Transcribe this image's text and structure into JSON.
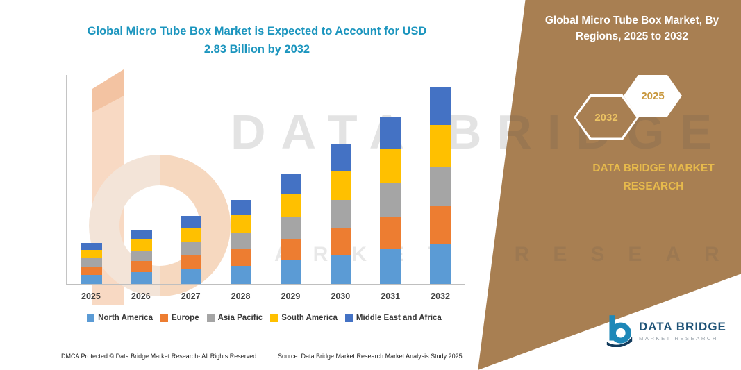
{
  "title": {
    "line1": "Global Micro Tube Box Market is Expected to Account for USD",
    "line2": "2.83 Billion by 2032"
  },
  "chart_data": {
    "type": "bar",
    "stacked": true,
    "title": "Global Micro Tube Box Market is Expected to Account for USD 2.83 Billion by 2032",
    "value_unit": "USD Billion",
    "categories": [
      "2025",
      "2026",
      "2027",
      "2028",
      "2029",
      "2030",
      "2031",
      "2032"
    ],
    "series": [
      {
        "name": "North America",
        "color": "#5B9BD5",
        "values": [
          0.13,
          0.17,
          0.21,
          0.26,
          0.34,
          0.42,
          0.5,
          0.57
        ]
      },
      {
        "name": "Europe",
        "color": "#ED7D31",
        "values": [
          0.12,
          0.16,
          0.2,
          0.24,
          0.31,
          0.39,
          0.47,
          0.55
        ]
      },
      {
        "name": "Asia Pacific",
        "color": "#A5A5A5",
        "values": [
          0.12,
          0.15,
          0.19,
          0.24,
          0.31,
          0.4,
          0.48,
          0.57
        ]
      },
      {
        "name": "South America",
        "color": "#FFC000",
        "values": [
          0.12,
          0.16,
          0.2,
          0.25,
          0.33,
          0.42,
          0.5,
          0.6
        ]
      },
      {
        "name": "Middle East and Africa",
        "color": "#4472C4",
        "values": [
          0.1,
          0.14,
          0.18,
          0.22,
          0.3,
          0.38,
          0.46,
          0.54
        ]
      }
    ],
    "ylim": [
      0,
      3.0
    ],
    "gridlines": false,
    "legend_position": "bottom"
  },
  "side_panel": {
    "bg_color": "#A87F52",
    "accent_gold": "#E7BA4C",
    "title_line1": "Global Micro Tube Box Market, By",
    "title_line2": "Regions, 2025 to 2032",
    "hexagons": [
      {
        "label": "2032"
      },
      {
        "label": "2025"
      }
    ],
    "brand_line1": "DATA BRIDGE MARKET",
    "brand_line2": "RESEARCH"
  },
  "watermark": {
    "line1": "DATA BRIDGE",
    "line2": "MARKET RESEARCH"
  },
  "footer": {
    "dmca": "DMCA Protected © Data Bridge Market Research-  All Rights Reserved.",
    "source": "Source: Data Bridge Market Research  Market Analysis Study 2025"
  },
  "brand_logo": {
    "title": "DATA BRIDGE",
    "subtitle": "MARKET RESEARCH"
  }
}
